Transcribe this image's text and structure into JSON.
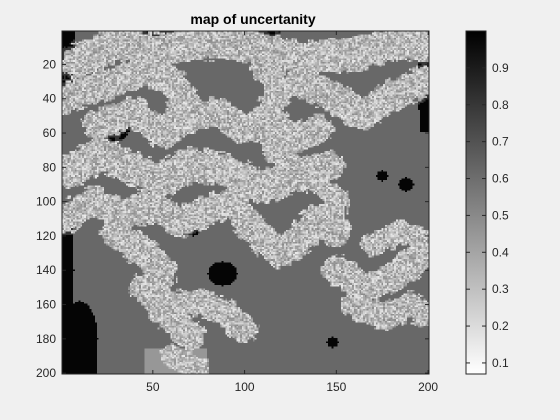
{
  "chart_data": {
    "type": "heatmap",
    "title": "map of uncertanity",
    "xlabel": "",
    "ylabel": "",
    "x_range": [
      1,
      200
    ],
    "y_range": [
      1,
      200
    ],
    "y_direction": "reverse",
    "x_ticks": [
      50,
      100,
      150,
      200
    ],
    "x_tick_labels": [
      "50",
      "100",
      "150",
      "200"
    ],
    "y_ticks": [
      20,
      40,
      60,
      80,
      100,
      120,
      140,
      160,
      180,
      200
    ],
    "y_tick_labels": [
      "20",
      "40",
      "60",
      "80",
      "100",
      "120",
      "140",
      "160",
      "180",
      "200"
    ],
    "colormap": "gray (reversed: 0.07 = white, 1.0 = black)",
    "color_limits": [
      0.07,
      1.0
    ],
    "colorbar": {
      "ticks": [
        0.1,
        0.2,
        0.3,
        0.4,
        0.5,
        0.6,
        0.7,
        0.8,
        0.9
      ],
      "tick_labels": [
        "0.1",
        "0.2",
        "0.3",
        "0.4",
        "0.5",
        "0.6",
        "0.7",
        "0.8",
        "0.9"
      ]
    },
    "value_levels": {
      "background_dark": 0.98,
      "medium_region": 0.62,
      "light_channels": 0.15
    },
    "regions": {
      "channels": [
        {
          "path": [
            [
              10,
              18
            ],
            [
              30,
              8
            ],
            [
              55,
              12
            ],
            [
              80,
              7
            ],
            [
              105,
              10
            ],
            [
              130,
              16
            ],
            [
              160,
              14
            ],
            [
              185,
              8
            ],
            [
              198,
              10
            ]
          ],
          "width": 11
        },
        {
          "path": [
            [
              2,
              40
            ],
            [
              25,
              32
            ],
            [
              45,
              24
            ],
            [
              60,
              30
            ],
            [
              70,
              45
            ]
          ],
          "width": 10
        },
        {
          "path": [
            [
              20,
              55
            ],
            [
              40,
              48
            ],
            [
              55,
              60
            ],
            [
              65,
              52
            ],
            [
              85,
              48
            ],
            [
              100,
              58
            ],
            [
              115,
              52
            ],
            [
              125,
              64
            ],
            [
              140,
              58
            ]
          ],
          "width": 10
        },
        {
          "path": [
            [
              5,
              82
            ],
            [
              22,
              72
            ],
            [
              38,
              80
            ],
            [
              55,
              88
            ],
            [
              70,
              78
            ],
            [
              90,
              82
            ],
            [
              110,
              92
            ],
            [
              128,
              84
            ],
            [
              145,
              80
            ]
          ],
          "width": 11
        },
        {
          "path": [
            [
              110,
              20
            ],
            [
              120,
              35
            ],
            [
              112,
              50
            ],
            [
              118,
              70
            ],
            [
              130,
              82
            ]
          ],
          "width": 9
        },
        {
          "path": [
            [
              130,
              30
            ],
            [
              150,
              40
            ],
            [
              165,
              50
            ],
            [
              180,
              38
            ],
            [
              198,
              30
            ]
          ],
          "width": 10
        },
        {
          "path": [
            [
              2,
              110
            ],
            [
              18,
              100
            ],
            [
              35,
              108
            ],
            [
              50,
              102
            ],
            [
              65,
              112
            ],
            [
              80,
              105
            ],
            [
              95,
              100
            ]
          ],
          "width": 10
        },
        {
          "path": [
            [
              30,
              118
            ],
            [
              45,
              130
            ],
            [
              55,
              140
            ],
            [
              50,
              155
            ],
            [
              60,
              168
            ],
            [
              70,
              178
            ]
          ],
          "width": 10
        },
        {
          "path": [
            [
              45,
              150
            ],
            [
              60,
              160
            ],
            [
              75,
              158
            ],
            [
              90,
              165
            ],
            [
              100,
              175
            ]
          ],
          "width": 9
        },
        {
          "path": [
            [
              100,
              110
            ],
            [
              110,
              122
            ],
            [
              120,
              130
            ],
            [
              130,
              122
            ],
            [
              140,
              110
            ],
            [
              150,
              118
            ]
          ],
          "width": 10
        },
        {
          "path": [
            [
              140,
              90
            ],
            [
              150,
              98
            ],
            [
              148,
              110
            ]
          ],
          "width": 8
        },
        {
          "path": [
            [
              60,
              190
            ],
            [
              75,
              198
            ]
          ],
          "width": 8
        },
        {
          "path": [
            [
              150,
              140
            ],
            [
              165,
              150
            ],
            [
              180,
              145
            ],
            [
              198,
              130
            ]
          ],
          "width": 10
        },
        {
          "path": [
            [
              160,
              160
            ],
            [
              175,
              168
            ],
            [
              190,
              160
            ],
            [
              198,
              165
            ]
          ],
          "width": 9
        },
        {
          "path": [
            [
              170,
              125
            ],
            [
              185,
              118
            ],
            [
              198,
              122
            ]
          ],
          "width": 8
        }
      ],
      "dark_blobs": [
        {
          "cx": 10,
          "cy": 180,
          "rx": 10,
          "ry": 22
        },
        {
          "cx": 3,
          "cy": 140,
          "rx": 4,
          "ry": 40
        },
        {
          "cx": 48,
          "cy": 6,
          "rx": 6,
          "ry": 4
        },
        {
          "cx": 30,
          "cy": 55,
          "rx": 8,
          "ry": 10
        },
        {
          "cx": 88,
          "cy": 142,
          "rx": 8,
          "ry": 7
        },
        {
          "cx": 72,
          "cy": 112,
          "rx": 5,
          "ry": 8
        },
        {
          "cx": 188,
          "cy": 90,
          "rx": 4,
          "ry": 4
        },
        {
          "cx": 175,
          "cy": 85,
          "rx": 3,
          "ry": 3
        },
        {
          "cx": 148,
          "cy": 182,
          "rx": 3,
          "ry": 3
        },
        {
          "cx": 197,
          "cy": 30,
          "rx": 3,
          "ry": 22
        }
      ]
    }
  }
}
